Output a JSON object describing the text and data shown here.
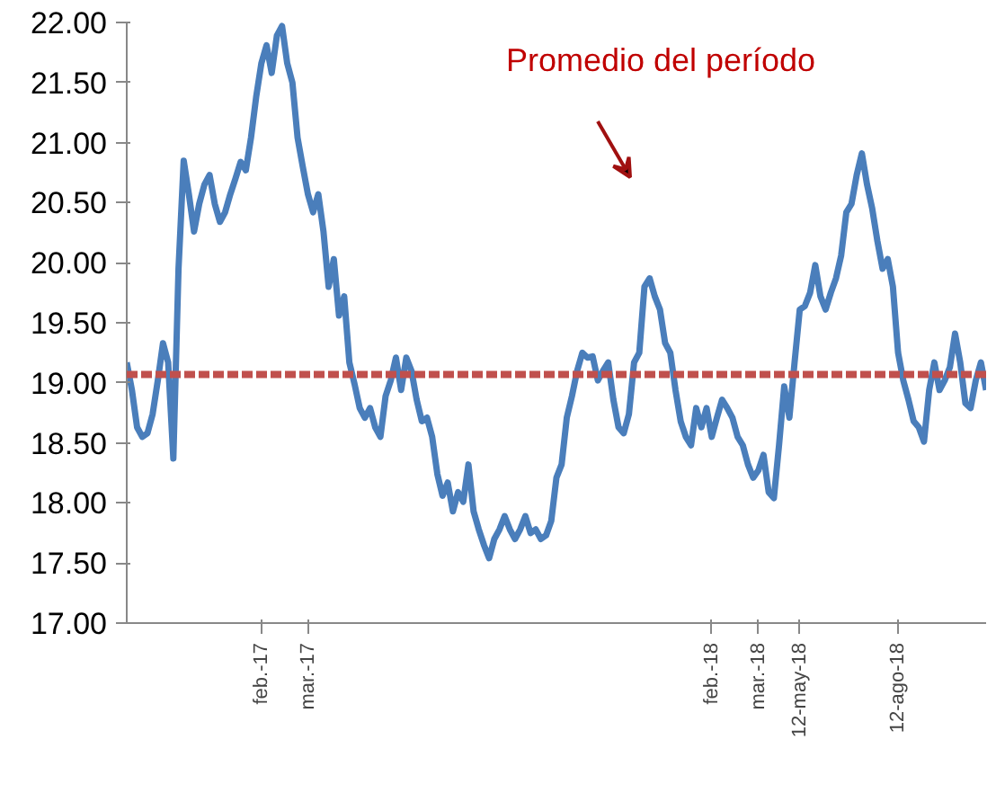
{
  "chart_data": {
    "type": "line",
    "categories": [
      null,
      null,
      null,
      null,
      null,
      null,
      null,
      null,
      null,
      null,
      null,
      null,
      null,
      null,
      null,
      null,
      null,
      null,
      null,
      null,
      null,
      null,
      null,
      null,
      null,
      null,
      "feb.-17",
      null,
      null,
      null,
      null,
      null,
      null,
      null,
      null,
      "mar.-17",
      null,
      null,
      null,
      null,
      null,
      null,
      null,
      null,
      null,
      null,
      null,
      null,
      null,
      null,
      null,
      null,
      null,
      null,
      null,
      null,
      null,
      null,
      null,
      null,
      null,
      null,
      null,
      null,
      null,
      null,
      null,
      null,
      null,
      null,
      null,
      null,
      null,
      null,
      null,
      null,
      null,
      null,
      null,
      null,
      null,
      null,
      null,
      null,
      null,
      null,
      null,
      null,
      null,
      null,
      null,
      null,
      null,
      null,
      null,
      null,
      null,
      null,
      null,
      null,
      null,
      null,
      null,
      null,
      null,
      null,
      null,
      null,
      null,
      null,
      null,
      null,
      null,
      "feb.-18",
      null,
      null,
      null,
      null,
      null,
      null,
      null,
      null,
      "mar.-18",
      null,
      null,
      null,
      null,
      null,
      null,
      null,
      "12-may-18",
      null,
      null,
      null,
      null,
      null,
      null,
      null,
      null,
      null,
      null,
      null,
      null,
      null,
      null,
      null,
      null,
      null,
      null,
      "12-ago-18",
      null,
      null,
      null,
      null,
      null,
      null,
      null,
      null,
      null,
      null,
      null,
      null,
      null,
      null,
      null,
      null,
      null
    ],
    "series": [
      {
        "color": "#4a7ebb",
        "values": [
          19.17,
          18.94,
          18.63,
          18.55,
          18.58,
          18.74,
          19.02,
          19.33,
          19.17,
          18.37,
          19.95,
          20.85,
          20.57,
          20.26,
          20.49,
          20.65,
          20.73,
          20.49,
          20.34,
          20.42,
          20.57,
          20.7,
          20.84,
          20.77,
          21.04,
          21.38,
          21.66,
          21.81,
          21.58,
          21.89,
          21.97,
          21.66,
          21.5,
          21.04,
          20.8,
          20.57,
          20.42,
          20.57,
          20.26,
          19.8,
          20.03,
          19.56,
          19.72,
          19.17,
          18.99,
          18.79,
          18.71,
          18.79,
          18.63,
          18.55,
          18.89,
          19.02,
          19.21,
          18.94,
          19.21,
          19.1,
          18.86,
          18.68,
          18.71,
          18.55,
          18.24,
          18.06,
          18.17,
          17.93,
          18.09,
          18.01,
          18.32,
          17.93,
          17.78,
          17.65,
          17.54,
          17.7,
          17.78,
          17.89,
          17.78,
          17.7,
          17.78,
          17.89,
          17.75,
          17.78,
          17.7,
          17.73,
          17.85,
          18.21,
          18.32,
          18.71,
          18.89,
          19.1,
          19.25,
          19.21,
          19.22,
          19.02,
          19.1,
          19.17,
          18.86,
          18.63,
          18.58,
          18.74,
          19.17,
          19.25,
          19.8,
          19.87,
          19.72,
          19.61,
          19.33,
          19.25,
          18.94,
          18.68,
          18.55,
          18.48,
          18.79,
          18.63,
          18.79,
          18.55,
          18.71,
          18.86,
          18.79,
          18.71,
          18.55,
          18.48,
          18.32,
          18.21,
          18.27,
          18.4,
          18.09,
          18.04,
          18.48,
          18.97,
          18.71,
          19.17,
          19.61,
          19.64,
          19.75,
          19.98,
          19.72,
          19.61,
          19.75,
          19.87,
          20.06,
          20.42,
          20.49,
          20.73,
          20.91,
          20.65,
          20.45,
          20.18,
          19.95,
          20.03,
          19.8,
          19.25,
          19.02,
          18.86,
          18.68,
          18.63,
          18.51,
          18.94,
          19.17,
          18.94,
          19.02,
          19.13,
          19.41,
          19.17,
          18.83,
          18.79,
          19.02,
          19.17,
          18.94
        ]
      }
    ],
    "ylim": [
      17.0,
      22.0
    ],
    "yticks": [
      {
        "value": 17,
        "label": "17.00"
      },
      {
        "value": 17.5,
        "label": "17.50"
      },
      {
        "value": 18,
        "label": "18.00"
      },
      {
        "value": 18.5,
        "label": "18.50"
      },
      {
        "value": 19,
        "label": "19.00"
      },
      {
        "value": 19.5,
        "label": "19.50"
      },
      {
        "value": 20,
        "label": "20.00"
      },
      {
        "value": 20.5,
        "label": "20.50"
      },
      {
        "value": 21,
        "label": "21.00"
      },
      {
        "value": 21.5,
        "label": "21.50"
      },
      {
        "value": 22,
        "label": "22.00"
      }
    ],
    "ref_lines": [
      {
        "axis": "y",
        "value": 19.07,
        "color": "#c0504d",
        "line_style": "dashed"
      }
    ],
    "annotations": [
      "Promedio del período"
    ],
    "grid": false,
    "marker": "none",
    "line_style": "solid"
  }
}
